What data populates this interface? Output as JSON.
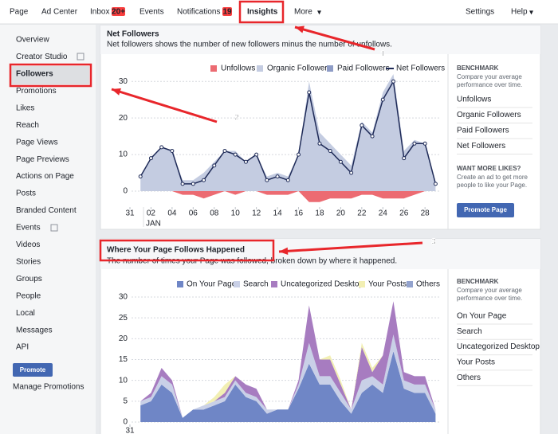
{
  "nav": {
    "items": [
      "Page",
      "Ad Center",
      "Inbox",
      "Events",
      "Notifications",
      "Insights",
      "More"
    ],
    "inbox_badge": "20+",
    "notifications_badge": "19",
    "right": [
      "Settings",
      "Help"
    ]
  },
  "sidebar": {
    "items": [
      "Overview",
      "Creator Studio",
      "Followers",
      "Promotions",
      "Likes",
      "Reach",
      "Page Views",
      "Page Previews",
      "Actions on Page",
      "Posts",
      "Branded Content",
      "Events",
      "Videos",
      "Stories",
      "Groups",
      "People",
      "Local",
      "Messages",
      "API"
    ],
    "promote_button": "Promote",
    "manage_promotions": "Manage Promotions"
  },
  "net_followers": {
    "title": "Net Followers",
    "subtitle": "Net followers shows the number of new followers minus the number of unfollows.",
    "benchmark": {
      "heading": "BENCHMARK",
      "description": "Compare your average performance over time.",
      "items": [
        "Unfollows",
        "Organic Followers",
        "Paid Followers",
        "Net Followers"
      ]
    },
    "promo": {
      "heading": "WANT MORE LIKES?",
      "text": "Create an ad to get more people to like your Page.",
      "button": "Promote Page"
    },
    "chart": {
      "type": "area",
      "x": [
        1,
        2,
        3,
        4,
        5,
        6,
        7,
        8,
        9,
        10,
        11,
        12,
        13,
        14,
        15,
        16,
        17,
        18,
        19,
        20,
        21,
        22,
        23,
        24,
        25,
        26,
        27,
        28,
        29
      ],
      "xlim": [
        0,
        29.5
      ],
      "xticks": [
        {
          "value": 0,
          "label": "31"
        },
        {
          "value": 2,
          "label": "02"
        },
        {
          "value": 4,
          "label": "04"
        },
        {
          "value": 6,
          "label": "06"
        },
        {
          "value": 8,
          "label": "08"
        },
        10,
        12,
        14,
        16,
        18,
        20,
        22,
        24,
        26,
        28
      ],
      "month_label": "JAN",
      "ylim": [
        -5,
        32
      ],
      "yticks": [
        0,
        10,
        20,
        30
      ],
      "grid": true,
      "legend": "top-right",
      "series": [
        {
          "name": "Unfollows",
          "color": "#ec6b72",
          "values": [
            0,
            0,
            0,
            0,
            -1,
            -1,
            -2,
            -1,
            0,
            -1,
            0,
            0,
            -1,
            -1,
            -1,
            0,
            -3,
            -3,
            -2,
            -2,
            -2,
            -1,
            -1,
            -2,
            -2,
            -2,
            -1,
            0,
            0
          ]
        },
        {
          "name": "Organic Followers",
          "color": "#c4cce1",
          "values": [
            4,
            9,
            12,
            11,
            3,
            3,
            5,
            8,
            11,
            11,
            8,
            10,
            4,
            5,
            4,
            10,
            30,
            16,
            13,
            10,
            7,
            19,
            16,
            27,
            32,
            11,
            14,
            13,
            2
          ]
        },
        {
          "name": "Paid Followers",
          "color": "#8e9cc6",
          "values": [
            0,
            0,
            0,
            0,
            0,
            0,
            0,
            0,
            0,
            0,
            0,
            0,
            0,
            0,
            0,
            0,
            0,
            0,
            0,
            0,
            0,
            0,
            0,
            0,
            0,
            0,
            0,
            0,
            0
          ]
        },
        {
          "name": "Net Followers",
          "color": "#1f2b58",
          "values": [
            4,
            9,
            12,
            11,
            2,
            2,
            3,
            7,
            11,
            10,
            8,
            10,
            3,
            4,
            3,
            10,
            27,
            13,
            11,
            8,
            5,
            18,
            15,
            25,
            30,
            9,
            13,
            13,
            2
          ]
        }
      ]
    }
  },
  "page_follows": {
    "title": "Where Your Page Follows Happened",
    "subtitle": "The number of times your Page was followed, broken down by where it happened.",
    "benchmark": {
      "heading": "BENCHMARK",
      "description": "Compare your average performance over time.",
      "items": [
        "On Your Page",
        "Search",
        "Uncategorized Desktop",
        "Your Posts",
        "Others"
      ]
    },
    "chart": {
      "type": "stacked_area",
      "x": [
        1,
        2,
        3,
        4,
        5,
        6,
        7,
        8,
        9,
        10,
        11,
        12,
        13,
        14,
        15,
        16,
        17,
        18,
        19,
        20,
        21,
        22,
        23,
        24,
        25,
        26,
        27,
        28,
        29
      ],
      "xlim": [
        0,
        29.5
      ],
      "xticks": [
        {
          "value": 0,
          "label": "31"
        }
      ],
      "ylim": [
        0,
        30
      ],
      "yticks": [
        0,
        5,
        10,
        15,
        20,
        25,
        30
      ],
      "grid": true,
      "legend": "top-right",
      "series": [
        {
          "name": "On Your Page",
          "color": "#6f86c6",
          "values": [
            4,
            5,
            9,
            7,
            1,
            3,
            3,
            4,
            5,
            9,
            6,
            5,
            2,
            3,
            3,
            8,
            14,
            9,
            9,
            5,
            2,
            7,
            9,
            7,
            17,
            8,
            7,
            7,
            2
          ]
        },
        {
          "name": "Search",
          "color": "#c9d0e7",
          "values": [
            1,
            1,
            2,
            2,
            0,
            0,
            1,
            1,
            1,
            1,
            1,
            1,
            1,
            0,
            0,
            1,
            5,
            2,
            2,
            2,
            1,
            3,
            2,
            2,
            4,
            2,
            2,
            2,
            1
          ]
        },
        {
          "name": "Uncategorized Desktop",
          "color": "#a77cc0",
          "values": [
            0,
            1,
            2,
            1,
            0,
            0,
            0,
            0,
            1,
            1,
            2,
            2,
            0,
            0,
            0,
            1,
            9,
            4,
            4,
            2,
            0,
            8,
            1,
            7,
            8,
            2,
            2,
            2,
            0
          ]
        },
        {
          "name": "Your Posts",
          "color": "#f2efb3",
          "values": [
            0,
            0,
            0,
            0,
            0,
            0,
            0,
            1,
            2,
            0,
            0,
            0,
            0,
            0,
            0,
            0,
            0,
            0,
            1,
            1,
            0,
            1,
            1,
            0,
            0,
            0,
            0,
            0,
            0
          ]
        },
        {
          "name": "Others",
          "color": "#93a3ce",
          "values": [
            0,
            0,
            0,
            0,
            0,
            0,
            0,
            0,
            0,
            0,
            0,
            0,
            0,
            0,
            0,
            0,
            0,
            0,
            0,
            0,
            0,
            0,
            0,
            0,
            0,
            0,
            0,
            0,
            0
          ]
        }
      ]
    }
  },
  "annotations": [
    "1",
    "2",
    "3"
  ]
}
